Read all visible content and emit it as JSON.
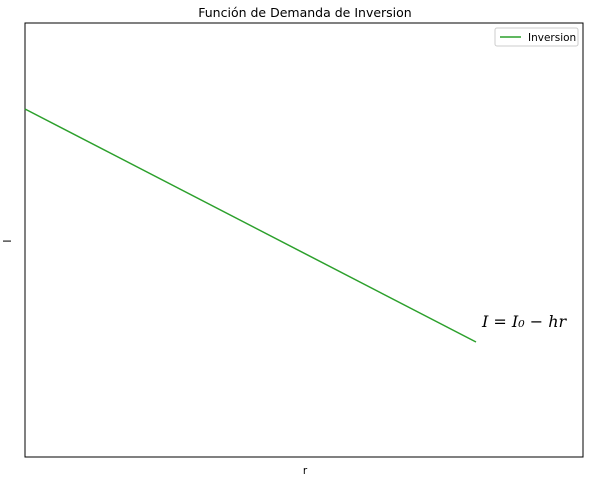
{
  "chart_data": {
    "type": "line",
    "title": "Función de Demanda de Inversion",
    "xlabel": "r",
    "ylabel": "I",
    "x_ticks": [],
    "y_ticks": [],
    "grid": false,
    "legend_position": "top-right",
    "series": [
      {
        "name": "Inversion",
        "color": "#2ca02c",
        "x": [
          0,
          1
        ],
        "y": [
          1,
          0
        ]
      }
    ],
    "annotations": [
      {
        "text": "I = I₀ − hr",
        "x": 1,
        "y": 0
      }
    ]
  }
}
